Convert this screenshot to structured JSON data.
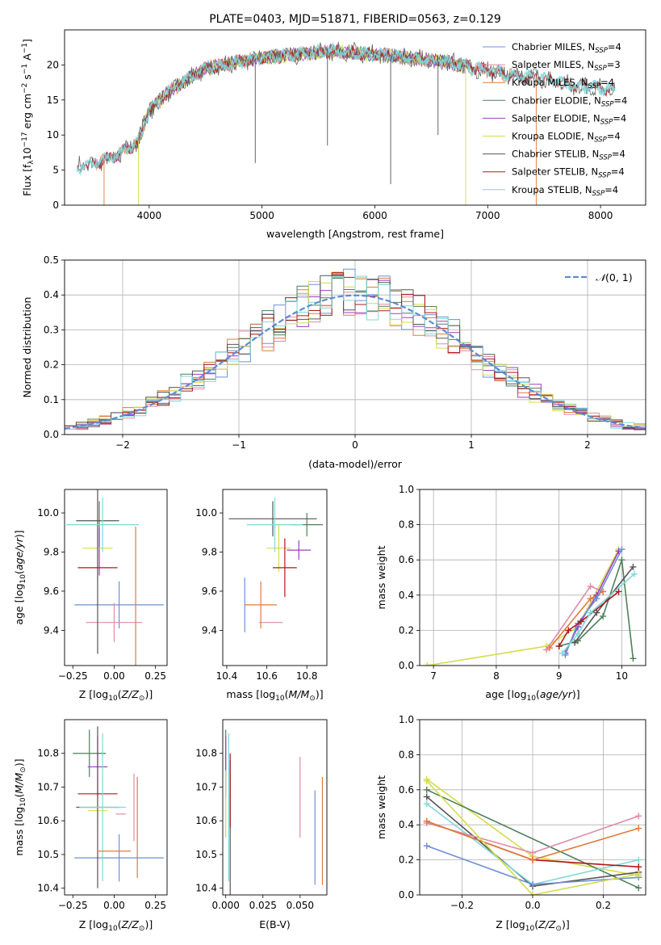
{
  "colors": {
    "chabrier_miles": "#6f8fd6",
    "salpeter_miles": "#e08aa8",
    "kroupa_miles": "#e07b39",
    "chabrier_elodie": "#4f7f5a",
    "salpeter_elodie": "#9b3fc0",
    "kroupa_elodie": "#d4dc4a",
    "chabrier_stelib": "#555555",
    "salpeter_stelib": "#b01818",
    "kroupa_stelib": "#7fd8dc",
    "gaussian": "#5b8bd6",
    "grid": "#b0b0b0"
  },
  "chart_data": [
    {
      "id": "spectrum",
      "type": "line",
      "title": "PLATE=0403, MJD=51871, FIBERID=0563, z=0.129",
      "xlabel": "wavelength [Angstrom, rest frame]",
      "ylabel": "Flux [fλ10⁻¹⁷ erg cm⁻² s⁻¹ A⁻¹]",
      "xlim": [
        3250,
        8400
      ],
      "ylim": [
        0,
        25
      ],
      "xticks": [
        4000,
        5000,
        6000,
        7000,
        8000
      ],
      "yticks": [
        0,
        5,
        10,
        15,
        20
      ],
      "grid": false,
      "legend_position": "top-right",
      "legend": [
        "Chabrier MILES, N_SSP=4",
        "Salpeter MILES, N_SSP=3",
        "Kroupa MILES, N_SSP=4",
        "Chabrier ELODIE, N_SSP=4",
        "Salpeter ELODIE, N_SSP=4",
        "Kroupa ELODIE, N_SSP=4",
        "Chabrier STELIB, N_SSP=4",
        "Salpeter STELIB, N_SSP=4",
        "Kroupa STELIB, N_SSP=4"
      ],
      "legend_prefix": [
        "Chabrier MILES, N",
        "Salpeter MILES, N",
        "Kroupa MILES, N",
        "Chabrier ELODIE, N",
        "Salpeter ELODIE, N",
        "Kroupa ELODIE, N",
        "Chabrier STELIB, N",
        "Salpeter STELIB, N",
        "Kroupa STELIB, N"
      ],
      "legend_sub": "SSP",
      "legend_suffix": [
        "=4",
        "=3",
        "=4",
        "=4",
        "=4",
        "=4",
        "=4",
        "=4",
        "=4"
      ],
      "continuum": {
        "wavelength": [
          3360,
          3500,
          3700,
          3900,
          4000,
          4200,
          4500,
          4800,
          5000,
          5300,
          5600,
          6000,
          6300,
          6600,
          6900,
          7200,
          7500,
          7800,
          8100
        ],
        "flux": [
          5.5,
          6.0,
          7.0,
          9.0,
          13.5,
          16.5,
          19.5,
          20.5,
          21.0,
          21.5,
          22.0,
          21.5,
          21.0,
          20.5,
          19.5,
          18.5,
          18.0,
          17.0,
          16.5
        ]
      },
      "spikes": [
        {
          "wavelength": 3600,
          "flux": 0,
          "model": "kroupa_miles"
        },
        {
          "wavelength": 3905,
          "flux": 0,
          "model": "kroupa_elodie"
        },
        {
          "wavelength": 4940,
          "flux": 6,
          "model": "chabrier_stelib"
        },
        {
          "wavelength": 5580,
          "flux": 8.5,
          "model": "chabrier_stelib"
        },
        {
          "wavelength": 6140,
          "flux": 3,
          "model": "chabrier_stelib"
        },
        {
          "wavelength": 6560,
          "flux": 10,
          "model": "chabrier_stelib"
        },
        {
          "wavelength": 6805,
          "flux": 0,
          "model": "kroupa_elodie"
        },
        {
          "wavelength": 7430,
          "flux": 0,
          "model": "kroupa_miles"
        }
      ]
    },
    {
      "id": "residuals",
      "type": "histogram",
      "xlabel": "(data-model)/error",
      "ylabel": "Normed distribution",
      "xlim": [
        -2.5,
        2.5
      ],
      "ylim": [
        0,
        0.5
      ],
      "xticks": [
        -2,
        -1,
        0,
        1,
        2
      ],
      "yticks": [
        0.0,
        0.1,
        0.2,
        0.3,
        0.4,
        0.5
      ],
      "grid": true,
      "legend_position": "top-right",
      "legend": [
        "N(0,1)"
      ],
      "legend_n": "𝒩",
      "legend_args": "(0, 1)",
      "bin_width": 0.1,
      "reference_curve": "standard normal"
    },
    {
      "id": "age_vs_Z",
      "type": "scatter",
      "xlabel": "Z [log10(Z/Z⊙)]",
      "ylabel": "age  [log10(age/yr)]",
      "xlim": [
        -0.3,
        0.32
      ],
      "ylim": [
        9.22,
        10.12
      ],
      "xticks": [
        -0.25,
        0.0,
        0.25
      ],
      "yticks": [
        9.4,
        9.6,
        9.8,
        10.0
      ],
      "grid": false,
      "points": [
        {
          "model": "chabrier_miles",
          "x": 0.03,
          "y": 9.53,
          "xerr": 0.27,
          "yerr": 0.12
        },
        {
          "model": "salpeter_miles",
          "x": 0.0,
          "y": 9.44,
          "xerr": 0.17,
          "yerr": 0.1
        },
        {
          "model": "kroupa_miles",
          "x": 0.13,
          "y": 9.53,
          "xerr": 0.0,
          "yerr": 0.4
        },
        {
          "model": "chabrier_elodie",
          "x": -0.09,
          "y": 9.94,
          "xerr": 0.0,
          "yerr": 0.12
        },
        {
          "model": "salpeter_elodie",
          "x": -0.09,
          "y": 9.8,
          "xerr": 0.0,
          "yerr": 0.12
        },
        {
          "model": "kroupa_elodie",
          "x": -0.1,
          "y": 9.82,
          "xerr": 0.09,
          "yerr": 0.16
        },
        {
          "model": "chabrier_stelib",
          "x": -0.1,
          "y": 9.96,
          "xerr": 0.13,
          "yerr": 0.68
        },
        {
          "model": "salpeter_stelib",
          "x": -0.1,
          "y": 9.72,
          "xerr": 0.12,
          "yerr": 0.0
        },
        {
          "model": "kroupa_stelib",
          "x": -0.07,
          "y": 9.94,
          "xerr": 0.22,
          "yerr": 0.14
        }
      ]
    },
    {
      "id": "age_vs_mass",
      "type": "scatter",
      "xlabel": "mass [log10(M/M⊙)]",
      "ylabel": "",
      "xlim": [
        10.38,
        10.9
      ],
      "ylim": [
        9.22,
        10.12
      ],
      "xticks": [
        10.4,
        10.6,
        10.8
      ],
      "yticks": [
        9.4,
        9.6,
        9.8,
        10.0
      ],
      "grid": false,
      "points": [
        {
          "model": "chabrier_miles",
          "x": 10.49,
          "y": 9.53,
          "xerr": 0.0,
          "yerr": 0.14
        },
        {
          "model": "salpeter_miles",
          "x": 10.62,
          "y": 9.44,
          "xerr": 0.06,
          "yerr": 0.0
        },
        {
          "model": "kroupa_miles",
          "x": 10.57,
          "y": 9.53,
          "xerr": 0.08,
          "yerr": 0.12
        },
        {
          "model": "chabrier_elodie",
          "x": 10.8,
          "y": 9.94,
          "xerr": 0.08,
          "yerr": 0.06
        },
        {
          "model": "salpeter_elodie",
          "x": 10.76,
          "y": 9.81,
          "xerr": 0.06,
          "yerr": 0.05
        },
        {
          "model": "kroupa_elodie",
          "x": 10.66,
          "y": 9.82,
          "xerr": 0.06,
          "yerr": 0.12
        },
        {
          "model": "chabrier_stelib",
          "x": 10.63,
          "y": 9.97,
          "xerr": 0.22,
          "yerr": 0.09
        },
        {
          "model": "salpeter_stelib",
          "x": 10.69,
          "y": 9.72,
          "xerr": 0.06,
          "yerr": 0.15
        },
        {
          "model": "kroupa_stelib",
          "x": 10.64,
          "y": 9.94,
          "xerr": 0.14,
          "yerr": 0.14
        }
      ]
    },
    {
      "id": "weight_vs_age",
      "type": "line",
      "xlabel": "age  [log10(age/yr)]",
      "ylabel": "mass weight",
      "xlim": [
        6.78,
        10.38
      ],
      "ylim": [
        0,
        1
      ],
      "xticks": [
        7,
        8,
        9,
        10
      ],
      "yticks": [
        0.0,
        0.2,
        0.4,
        0.6,
        0.8,
        1.0
      ],
      "grid": true,
      "series": [
        {
          "model": "kroupa_elodie",
          "x": [
            6.9,
            8.8,
            9.3,
            9.95
          ],
          "y": [
            0.0,
            0.11,
            0.22,
            0.66
          ]
        },
        {
          "model": "salpeter_miles",
          "x": [
            8.8,
            9.5,
            9.7
          ],
          "y": [
            0.09,
            0.45,
            0.42
          ]
        },
        {
          "model": "kroupa_miles",
          "x": [
            8.85,
            9.5,
            9.7
          ],
          "y": [
            0.1,
            0.38,
            0.42
          ]
        },
        {
          "model": "chabrier_elodie",
          "x": [
            9.0,
            9.3,
            9.7,
            10.0,
            10.18
          ],
          "y": [
            0.11,
            0.14,
            0.28,
            0.6,
            0.04
          ]
        },
        {
          "model": "salpeter_elodie",
          "x": [
            9.1,
            9.3,
            9.6,
            9.95
          ],
          "y": [
            0.07,
            0.22,
            0.4,
            0.65
          ]
        },
        {
          "model": "chabrier_miles",
          "x": [
            9.1,
            9.3,
            9.6,
            10.0
          ],
          "y": [
            0.06,
            0.24,
            0.38,
            0.66
          ]
        },
        {
          "model": "chabrier_stelib",
          "x": [
            9.25,
            9.6,
            10.18
          ],
          "y": [
            0.13,
            0.3,
            0.56
          ]
        },
        {
          "model": "salpeter_stelib",
          "x": [
            9.0,
            9.15,
            9.35,
            9.95
          ],
          "y": [
            0.11,
            0.2,
            0.25,
            0.42
          ]
        },
        {
          "model": "kroupa_stelib",
          "x": [
            9.05,
            9.3,
            9.5,
            10.2
          ],
          "y": [
            0.07,
            0.18,
            0.3,
            0.52
          ]
        }
      ]
    },
    {
      "id": "mass_vs_Z",
      "type": "scatter",
      "xlabel": "Z [log10(Z/Z⊙)]",
      "ylabel": "mass [log10(M/M⊙)]",
      "xlim": [
        -0.3,
        0.32
      ],
      "ylim": [
        10.38,
        10.9
      ],
      "xticks": [
        -0.25,
        0.0,
        0.25
      ],
      "yticks": [
        10.4,
        10.5,
        10.6,
        10.7,
        10.8
      ],
      "grid": false,
      "points": [
        {
          "model": "chabrier_miles",
          "x": 0.03,
          "y": 10.49,
          "xerr": 0.27,
          "yerr": 0.07
        },
        {
          "model": "salpeter_miles",
          "x": 0.04,
          "y": 10.62,
          "xerr": 0.03,
          "yerr": 0.0
        },
        {
          "model": "kroupa_miles",
          "x": 0.14,
          "y": 10.58,
          "xerr": 0.0,
          "yerr": 0.15
        },
        {
          "model": "chabrier_elodie",
          "x": -0.15,
          "y": 10.8,
          "xerr": 0.1,
          "yerr": 0.07
        },
        {
          "model": "salpeter_elodie",
          "x": -0.1,
          "y": 10.76,
          "xerr": 0.06,
          "yerr": 0.09
        },
        {
          "model": "kroupa_elodie",
          "x": -0.1,
          "y": 10.63,
          "xerr": 0.06,
          "yerr": 0.06
        },
        {
          "model": "chabrier_stelib",
          "x": -0.1,
          "y": 10.64,
          "xerr": 0.13,
          "yerr": 0.24
        },
        {
          "model": "salpeter_stelib",
          "x": -0.1,
          "y": 10.68,
          "xerr": 0.12,
          "yerr": 0.0
        },
        {
          "model": "kroupa_stelib",
          "x": -0.07,
          "y": 10.64,
          "xerr": 0.14,
          "yerr": 0.22
        },
        {
          "model": "chabrier_miles",
          "x": -0.13,
          "y": 10.49,
          "xerr": 0.0,
          "yerr": 0.0
        },
        {
          "model": "salpeter_miles",
          "x": 0.12,
          "y": 10.64,
          "xerr": 0.0,
          "yerr": 0.1
        },
        {
          "model": "kroupa_miles",
          "x": 0.0,
          "y": 10.51,
          "xerr": 0.1,
          "yerr": 0.0
        }
      ]
    },
    {
      "id": "mass_vs_ebv",
      "type": "scatter",
      "xlabel": "E(B-V)",
      "ylabel": "",
      "xlim": [
        -0.002,
        0.068
      ],
      "ylim": [
        10.38,
        10.9
      ],
      "xticks": [
        0.0,
        0.025,
        0.05
      ],
      "yticks": [
        10.4,
        10.5,
        10.6,
        10.7,
        10.8
      ],
      "grid": false,
      "points": [
        {
          "model": "chabrier_miles",
          "x": 0.06,
          "y": 10.55,
          "xerr": 0.0,
          "yerr": 0.14
        },
        {
          "model": "salpeter_miles",
          "x": 0.05,
          "y": 10.67,
          "xerr": 0.0,
          "yerr": 0.12
        },
        {
          "model": "kroupa_miles",
          "x": 0.065,
          "y": 10.57,
          "xerr": 0.0,
          "yerr": 0.16
        },
        {
          "model": "chabrier_elodie",
          "x": 0.0,
          "y": 10.8,
          "xerr": 0.0,
          "yerr": 0.07
        },
        {
          "model": "salpeter_elodie",
          "x": 0.0,
          "y": 10.76,
          "xerr": 0.0,
          "yerr": 0.09
        },
        {
          "model": "kroupa_elodie",
          "x": 0.0,
          "y": 10.65,
          "xerr": 0.0,
          "yerr": 0.1
        },
        {
          "model": "chabrier_stelib",
          "x": 0.003,
          "y": 10.58,
          "xerr": 0.0,
          "yerr": 0.2
        },
        {
          "model": "salpeter_stelib",
          "x": 0.003,
          "y": 10.69,
          "xerr": 0.0,
          "yerr": 0.11
        },
        {
          "model": "kroupa_stelib",
          "x": 0.002,
          "y": 10.64,
          "xerr": 0.0,
          "yerr": 0.22
        }
      ]
    },
    {
      "id": "weight_vs_Z",
      "type": "line",
      "xlabel": "Z [log10(Z/Z⊙)]",
      "ylabel": "mass weight",
      "xlim": [
        -0.32,
        0.32
      ],
      "ylim": [
        0,
        1
      ],
      "xticks": [
        -0.2,
        0.0,
        0.2
      ],
      "yticks": [
        0.0,
        0.2,
        0.4,
        0.6,
        0.8,
        1.0
      ],
      "grid": true,
      "series": [
        {
          "model": "kroupa_elodie",
          "x": [
            -0.3,
            0.0,
            0.3
          ],
          "y": [
            0.66,
            0.22,
            0.11
          ]
        },
        {
          "model": "chabrier_elodie",
          "x": [
            -0.3,
            0.3
          ],
          "y": [
            0.6,
            0.04
          ]
        },
        {
          "model": "chabrier_stelib",
          "x": [
            -0.3,
            0.0,
            0.3
          ],
          "y": [
            0.56,
            0.05,
            0.13
          ]
        },
        {
          "model": "kroupa_stelib",
          "x": [
            -0.3,
            0.0,
            0.3
          ],
          "y": [
            0.52,
            0.06,
            0.2
          ]
        },
        {
          "model": "salpeter_stelib",
          "x": [
            -0.3,
            0.0,
            0.3
          ],
          "y": [
            0.42,
            0.2,
            0.16
          ]
        },
        {
          "model": "salpeter_miles",
          "x": [
            -0.3,
            0.0,
            0.3
          ],
          "y": [
            0.41,
            0.24,
            0.45
          ]
        },
        {
          "model": "kroupa_miles",
          "x": [
            -0.3,
            0.0,
            0.3
          ],
          "y": [
            0.42,
            0.2,
            0.38
          ]
        },
        {
          "model": "chabrier_miles",
          "x": [
            -0.3,
            0.0,
            0.3
          ],
          "y": [
            0.28,
            0.06,
            0.1
          ]
        },
        {
          "model": "kroupa_elodie",
          "x": [
            -0.3,
            0.0,
            0.3
          ],
          "y": [
            0.65,
            0.0,
            0.12
          ]
        }
      ]
    }
  ]
}
